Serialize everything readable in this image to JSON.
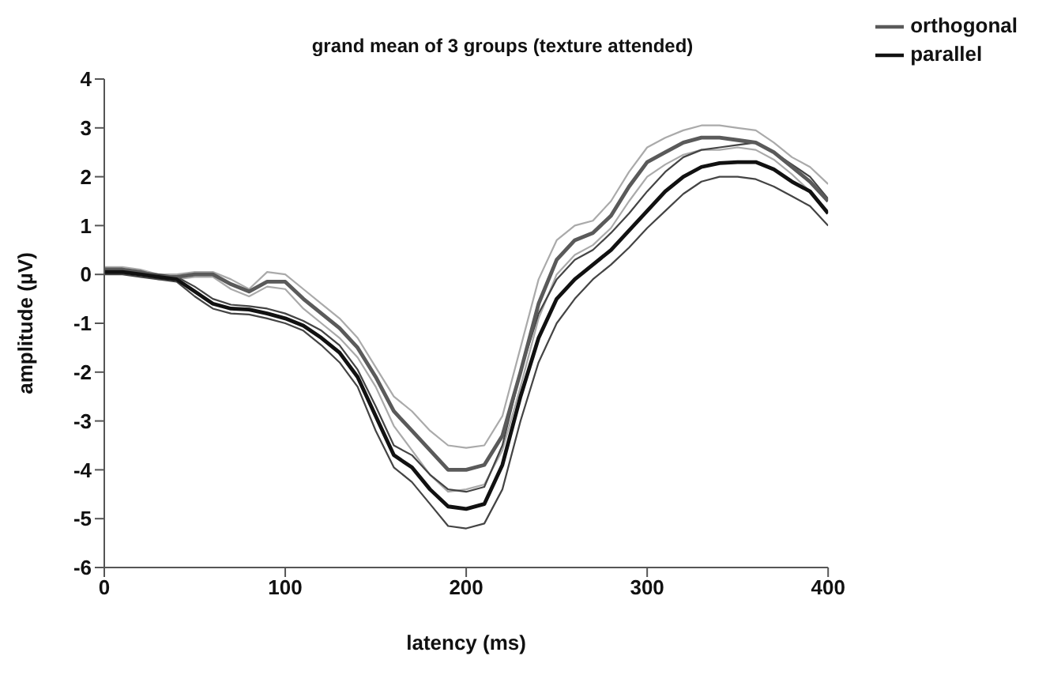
{
  "chart_data": {
    "type": "line",
    "title": "grand mean of 3 groups (texture attended)",
    "xlabel": "latency (ms)",
    "ylabel": "amplitude (µV)",
    "x": [
      0,
      10,
      20,
      30,
      40,
      50,
      60,
      70,
      80,
      90,
      100,
      110,
      120,
      130,
      140,
      150,
      160,
      170,
      180,
      190,
      200,
      210,
      220,
      230,
      240,
      250,
      260,
      270,
      280,
      290,
      300,
      310,
      320,
      330,
      340,
      350,
      360,
      370,
      380,
      390,
      400
    ],
    "series": [
      {
        "color": "#aaaaaa",
        "values": [
          0.15,
          0.15,
          0.1,
          0.0,
          0.0,
          0.05,
          0.05,
          -0.1,
          -0.3,
          0.05,
          0.0,
          -0.3,
          -0.6,
          -0.9,
          -1.3,
          -1.9,
          -2.5,
          -2.8,
          -3.2,
          -3.5,
          -3.55,
          -3.5,
          -2.9,
          -1.5,
          -0.1,
          0.7,
          1.0,
          1.1,
          1.5,
          2.1,
          2.6,
          2.8,
          2.95,
          3.05,
          3.05,
          3.0,
          2.95,
          2.7,
          2.4,
          2.2,
          1.85
        ]
      },
      {
        "color": "#aaaaaa",
        "values": [
          0.05,
          0.05,
          0.0,
          -0.1,
          -0.1,
          -0.05,
          -0.05,
          -0.3,
          -0.45,
          -0.25,
          -0.3,
          -0.7,
          -1.0,
          -1.3,
          -1.7,
          -2.3,
          -3.1,
          -3.6,
          -4.1,
          -4.45,
          -4.4,
          -4.3,
          -3.6,
          -2.3,
          -0.9,
          0.0,
          0.4,
          0.6,
          0.95,
          1.5,
          2.0,
          2.25,
          2.45,
          2.55,
          2.55,
          2.6,
          2.55,
          2.35,
          2.05,
          1.7,
          1.25
        ]
      },
      {
        "color": "#444444",
        "values": [
          0.1,
          0.1,
          0.05,
          0.0,
          -0.05,
          -0.25,
          -0.5,
          -0.62,
          -0.65,
          -0.7,
          -0.8,
          -0.95,
          -1.15,
          -1.45,
          -1.95,
          -2.7,
          -3.5,
          -3.7,
          -4.1,
          -4.4,
          -4.45,
          -4.35,
          -3.5,
          -2.0,
          -0.8,
          -0.1,
          0.3,
          0.5,
          0.85,
          1.25,
          1.7,
          2.1,
          2.4,
          2.55,
          2.6,
          2.65,
          2.7,
          2.5,
          2.25,
          2.0,
          1.55
        ]
      },
      {
        "color": "#444444",
        "values": [
          0.0,
          0.0,
          -0.05,
          -0.1,
          -0.15,
          -0.45,
          -0.7,
          -0.8,
          -0.82,
          -0.9,
          -1.0,
          -1.15,
          -1.45,
          -1.8,
          -2.3,
          -3.2,
          -3.95,
          -4.25,
          -4.7,
          -5.15,
          -5.2,
          -5.1,
          -4.4,
          -3.0,
          -1.8,
          -1.0,
          -0.5,
          -0.1,
          0.2,
          0.55,
          0.95,
          1.3,
          1.65,
          1.9,
          2.0,
          2.0,
          1.95,
          1.8,
          1.6,
          1.4,
          1.0
        ]
      },
      {
        "name": "orthogonal",
        "color": "#5a5a5a",
        "values": [
          0.1,
          0.1,
          0.05,
          -0.05,
          -0.05,
          0.0,
          0.0,
          -0.2,
          -0.35,
          -0.15,
          -0.15,
          -0.5,
          -0.8,
          -1.1,
          -1.5,
          -2.1,
          -2.8,
          -3.2,
          -3.6,
          -4.0,
          -4.0,
          -3.9,
          -3.3,
          -2.0,
          -0.6,
          0.3,
          0.7,
          0.85,
          1.2,
          1.8,
          2.3,
          2.5,
          2.7,
          2.8,
          2.8,
          2.75,
          2.7,
          2.5,
          2.2,
          1.9,
          1.5
        ]
      },
      {
        "name": "parallel",
        "color": "#111111",
        "values": [
          0.05,
          0.05,
          0.0,
          -0.05,
          -0.1,
          -0.35,
          -0.6,
          -0.7,
          -0.72,
          -0.8,
          -0.9,
          -1.05,
          -1.3,
          -1.6,
          -2.1,
          -2.9,
          -3.7,
          -3.95,
          -4.4,
          -4.75,
          -4.8,
          -4.7,
          -3.9,
          -2.5,
          -1.3,
          -0.5,
          -0.1,
          0.2,
          0.5,
          0.9,
          1.3,
          1.7,
          2.0,
          2.2,
          2.28,
          2.3,
          2.3,
          2.15,
          1.9,
          1.7,
          1.25
        ]
      }
    ],
    "xlim": [
      0,
      400
    ],
    "xticks": [
      0,
      100,
      200,
      300,
      400
    ],
    "ylim": [
      -6,
      4
    ],
    "yticks": [
      -6,
      -5,
      -4,
      -3,
      -2,
      -1,
      0,
      1,
      2,
      3,
      4
    ],
    "grid": false,
    "legend": "top right",
    "marker": "none",
    "line_style": "solid"
  }
}
